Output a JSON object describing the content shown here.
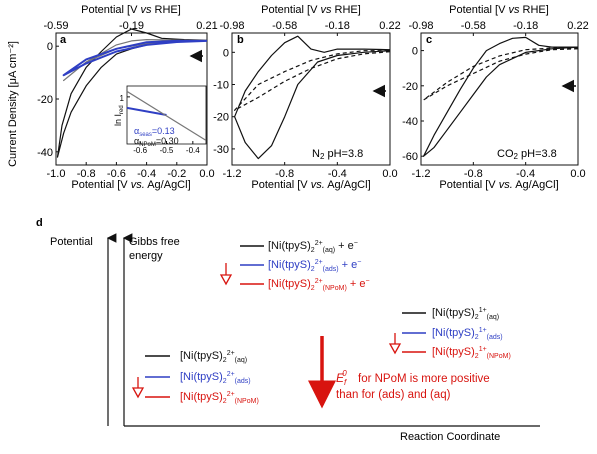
{
  "colors": {
    "black": "#111111",
    "gray": "#777777",
    "blue": "#2f3fc4",
    "red": "#d8140f"
  },
  "shared": {
    "top_axis_label_prefix": "Potential [V ",
    "top_axis_label_vs": "vs",
    "top_axis_label_suffix": " RHE]",
    "y_label": "Current Density [μA cm⁻²]"
  },
  "panels": {
    "a": {
      "letter": "a",
      "bottom_label_prefix": "Potential [V ",
      "bottom_label_vs": "vs.",
      "bottom_label_suffix": " Ag/AgCl]",
      "inset_ylabel": "ln I",
      "inset_ylabel_sub": "red",
      "inset_alpha_seas": "α",
      "inset_alpha_seas_sub": "seas",
      "inset_alpha_seas_val": "=0.13",
      "inset_alpha_npom": "α",
      "inset_alpha_npom_sub": "NPoM",
      "inset_alpha_npom_val": "=0.30"
    },
    "b": {
      "letter": "b",
      "bottom_label_prefix": "Potential [V ",
      "bottom_label_vs": "vs.",
      "bottom_label_suffix": " Ag/AgCl]",
      "annotation_prefix": "N",
      "annotation_sub": "2",
      "annotation_suffix": " pH=3.8"
    },
    "c": {
      "letter": "c",
      "bottom_label_prefix": "Potential [V ",
      "bottom_label_vs": "vs.",
      "bottom_label_suffix": " Ag/AgCl]",
      "annotation_prefix": "CO",
      "annotation_sub": "2",
      "annotation_suffix": " pH=3.8"
    }
  },
  "diagram_d": {
    "letter": "d",
    "potential_label": "Potential",
    "gibbs_label_line1": "Gibbs free",
    "gibbs_label_line2": "energy",
    "x_label": "Reaction Coordinate",
    "species_top": [
      "[Ni(tpyS)₂]²⁺(aq) + e⁻",
      "[Ni(tpyS)₂]²⁺(ads) + e⁻",
      "[Ni(tpyS)₂]²⁺(NPoM) + e⁻"
    ],
    "species_mid": [
      "[Ni(tpyS)₂]¹⁺(aq)",
      "[Ni(tpyS)₂]¹⁺(ads)",
      "[Ni(tpyS)₂]¹⁺(NPoM)"
    ],
    "species_low": [
      "[Ni(tpyS)₂]²⁺(aq)",
      "[Ni(tpyS)₂]²⁺(ads)",
      "[Ni(tpyS)₂]²⁺(NPoM)"
    ],
    "note_line1": "for NPoM is more positive",
    "note_line2": "than for (ads) and (aq)"
  },
  "chart_data": [
    {
      "panel": "a",
      "type": "line",
      "title": "",
      "xlabel": "Potential [V vs. Ag/AgCl]",
      "ylabel": "Current Density [μA cm⁻²]",
      "x2label": "Potential [V vs RHE]",
      "xlim": [
        -1.0,
        0.0
      ],
      "ylim": [
        -45,
        5
      ],
      "x_ticks": [
        -1.0,
        -0.8,
        -0.6,
        -0.4,
        -0.2,
        0.0
      ],
      "x_tick_labels": [
        "-1.0",
        "-0.8",
        "-0.6",
        "-0.4",
        "-0.2",
        "0.0"
      ],
      "x2_ticks": [
        -0.59,
        -0.19,
        0.21
      ],
      "x2_tick_labels": [
        "-0.59",
        "-0.19",
        "0.21"
      ],
      "y_ticks": [
        0,
        -20,
        -40
      ],
      "y_tick_labels": [
        "0",
        "-20",
        "-40"
      ],
      "series": [
        {
          "color": "black",
          "x": [
            0.0,
            -0.15,
            -0.3,
            -0.4,
            -0.5,
            -0.6,
            -0.7,
            -0.8,
            -0.9,
            -0.95,
            -0.99,
            -0.96,
            -0.9,
            -0.8,
            -0.7,
            -0.6,
            -0.5,
            -0.4,
            -0.3,
            -0.15,
            0.0
          ],
          "y": [
            2.0,
            2.0,
            1.5,
            0.5,
            -1.0,
            -3.0,
            -8.0,
            -15.0,
            -25.0,
            -33.0,
            -42.0,
            -30.0,
            -18.0,
            -8.0,
            -2.0,
            3.5,
            6.5,
            5.0,
            3.0,
            2.5,
            2.2
          ]
        },
        {
          "color": "gray",
          "x": [
            0.0,
            -0.2,
            -0.4,
            -0.6,
            -0.8,
            -0.95,
            -0.8,
            -0.6,
            -0.5,
            -0.4,
            -0.2,
            0.0
          ],
          "y": [
            2.0,
            1.8,
            1.0,
            -1.0,
            -6.0,
            -13.0,
            -6.0,
            0.5,
            2.0,
            2.5,
            2.3,
            2.1
          ]
        },
        {
          "color": "blue",
          "x": [
            0.0,
            -0.2,
            -0.4,
            -0.6,
            -0.8,
            -0.95,
            -0.8,
            -0.6,
            -0.4,
            -0.2,
            0.0
          ],
          "y": [
            2.0,
            1.6,
            0.5,
            -2.0,
            -6.5,
            -11.0,
            -5.0,
            -1.0,
            1.5,
            2.0,
            2.0
          ]
        }
      ]
    },
    {
      "panel": "a-inset",
      "type": "line",
      "title": "",
      "xlabel": "",
      "ylabel": "ln I red",
      "xlim": [
        -0.65,
        -0.35
      ],
      "x_ticks": [
        -0.6,
        -0.5,
        -0.4
      ],
      "x_tick_labels": [
        "-0.6",
        "-0.5",
        "-0.4"
      ],
      "y_ticks": [
        1
      ],
      "y_tick_labels": [
        "1"
      ],
      "series": [
        {
          "color": "blue",
          "x": [
            -0.65,
            -0.5
          ],
          "y": [
            0.4,
            0.0
          ]
        },
        {
          "color": "gray",
          "x": [
            -0.65,
            -0.35
          ],
          "y": [
            1.3,
            -1.4
          ]
        }
      ]
    },
    {
      "panel": "b",
      "type": "line",
      "title": "",
      "xlabel": "Potential [V vs. Ag/AgCl]",
      "ylabel": "",
      "x2label": "Potential [V vs RHE]",
      "xlim": [
        -1.2,
        0.0
      ],
      "ylim": [
        -35,
        6
      ],
      "x_ticks": [
        -1.2,
        -0.8,
        -0.4,
        0.0
      ],
      "x_tick_labels": [
        "-1.2",
        "-0.8",
        "-0.4",
        "0.0"
      ],
      "x2_ticks": [
        -0.98,
        -0.58,
        -0.18,
        0.22
      ],
      "x2_tick_labels": [
        "-0.98",
        "-0.58",
        "-0.18",
        "0.22"
      ],
      "y_ticks": [
        0,
        -10,
        -20,
        -30
      ],
      "y_tick_labels": [
        "0",
        "-10",
        "-20",
        "-30"
      ],
      "series": [
        {
          "color": "black",
          "style": "solid",
          "x": [
            0.0,
            -0.2,
            -0.4,
            -0.55,
            -0.7,
            -0.8,
            -0.9,
            -1.0,
            -1.1,
            -1.18,
            -1.1,
            -1.0,
            -0.9,
            -0.8,
            -0.7,
            -0.6,
            -0.5,
            -0.4,
            -0.2,
            0.0
          ],
          "y": [
            0.5,
            0.0,
            -1.0,
            -3.0,
            -10.0,
            -20.0,
            -29.0,
            -33.0,
            -28.0,
            -20.0,
            -12.0,
            -6.0,
            -1.0,
            3.0,
            5.0,
            1.0,
            0.0,
            1.0,
            1.0,
            0.8
          ]
        },
        {
          "color": "black",
          "style": "dashed",
          "x": [
            0.0,
            -0.2,
            -0.4,
            -0.6,
            -0.8,
            -1.0,
            -1.18,
            -1.0,
            -0.8,
            -0.6,
            -0.4,
            -0.2,
            0.0
          ],
          "y": [
            0.2,
            -0.5,
            -2.0,
            -5.0,
            -9.0,
            -14.0,
            -18.0,
            -10.0,
            -6.0,
            -2.5,
            -0.5,
            0.5,
            0.5
          ]
        }
      ]
    },
    {
      "panel": "c",
      "type": "line",
      "title": "",
      "xlabel": "Potential [V vs. Ag/AgCl]",
      "ylabel": "",
      "x2label": "Potential [V vs RHE]",
      "xlim": [
        -1.2,
        0.0
      ],
      "ylim": [
        -65,
        10
      ],
      "x_ticks": [
        -1.2,
        -0.8,
        -0.4,
        0.0
      ],
      "x_tick_labels": [
        "-1.2",
        "-0.8",
        "-0.4",
        "0.0"
      ],
      "x2_ticks": [
        -0.98,
        -0.58,
        -0.18,
        0.22
      ],
      "x2_tick_labels": [
        "-0.98",
        "-0.58",
        "-0.18",
        "0.22"
      ],
      "y_ticks": [
        0,
        -20,
        -40,
        -60
      ],
      "y_tick_labels": [
        "0",
        "-20",
        "-40",
        "-60"
      ],
      "series": [
        {
          "color": "black",
          "style": "solid",
          "x": [
            0.0,
            -0.2,
            -0.4,
            -0.6,
            -0.7,
            -0.8,
            -0.9,
            -1.0,
            -1.1,
            -1.18,
            -1.1,
            -1.0,
            -0.9,
            -0.8,
            -0.7,
            -0.6,
            -0.5,
            -0.4,
            -0.3,
            -0.2,
            0.0
          ],
          "y": [
            2.0,
            1.0,
            -1.0,
            -8.0,
            -15.0,
            -25.0,
            -35.0,
            -45.0,
            -55.0,
            -60.0,
            -48.0,
            -35.0,
            -22.0,
            -10.0,
            0.0,
            4.0,
            7.0,
            7.5,
            3.0,
            2.0,
            2.0
          ]
        },
        {
          "color": "black",
          "style": "dashed",
          "x": [
            0.0,
            -0.2,
            -0.4,
            -0.6,
            -0.8,
            -1.0,
            -1.18,
            -1.0,
            -0.8,
            -0.6,
            -0.4,
            -0.2,
            0.0
          ],
          "y": [
            1.0,
            0.5,
            -2.0,
            -6.0,
            -13.0,
            -20.0,
            -28.0,
            -18.0,
            -9.0,
            -3.0,
            0.5,
            1.5,
            1.5
          ]
        }
      ]
    }
  ]
}
